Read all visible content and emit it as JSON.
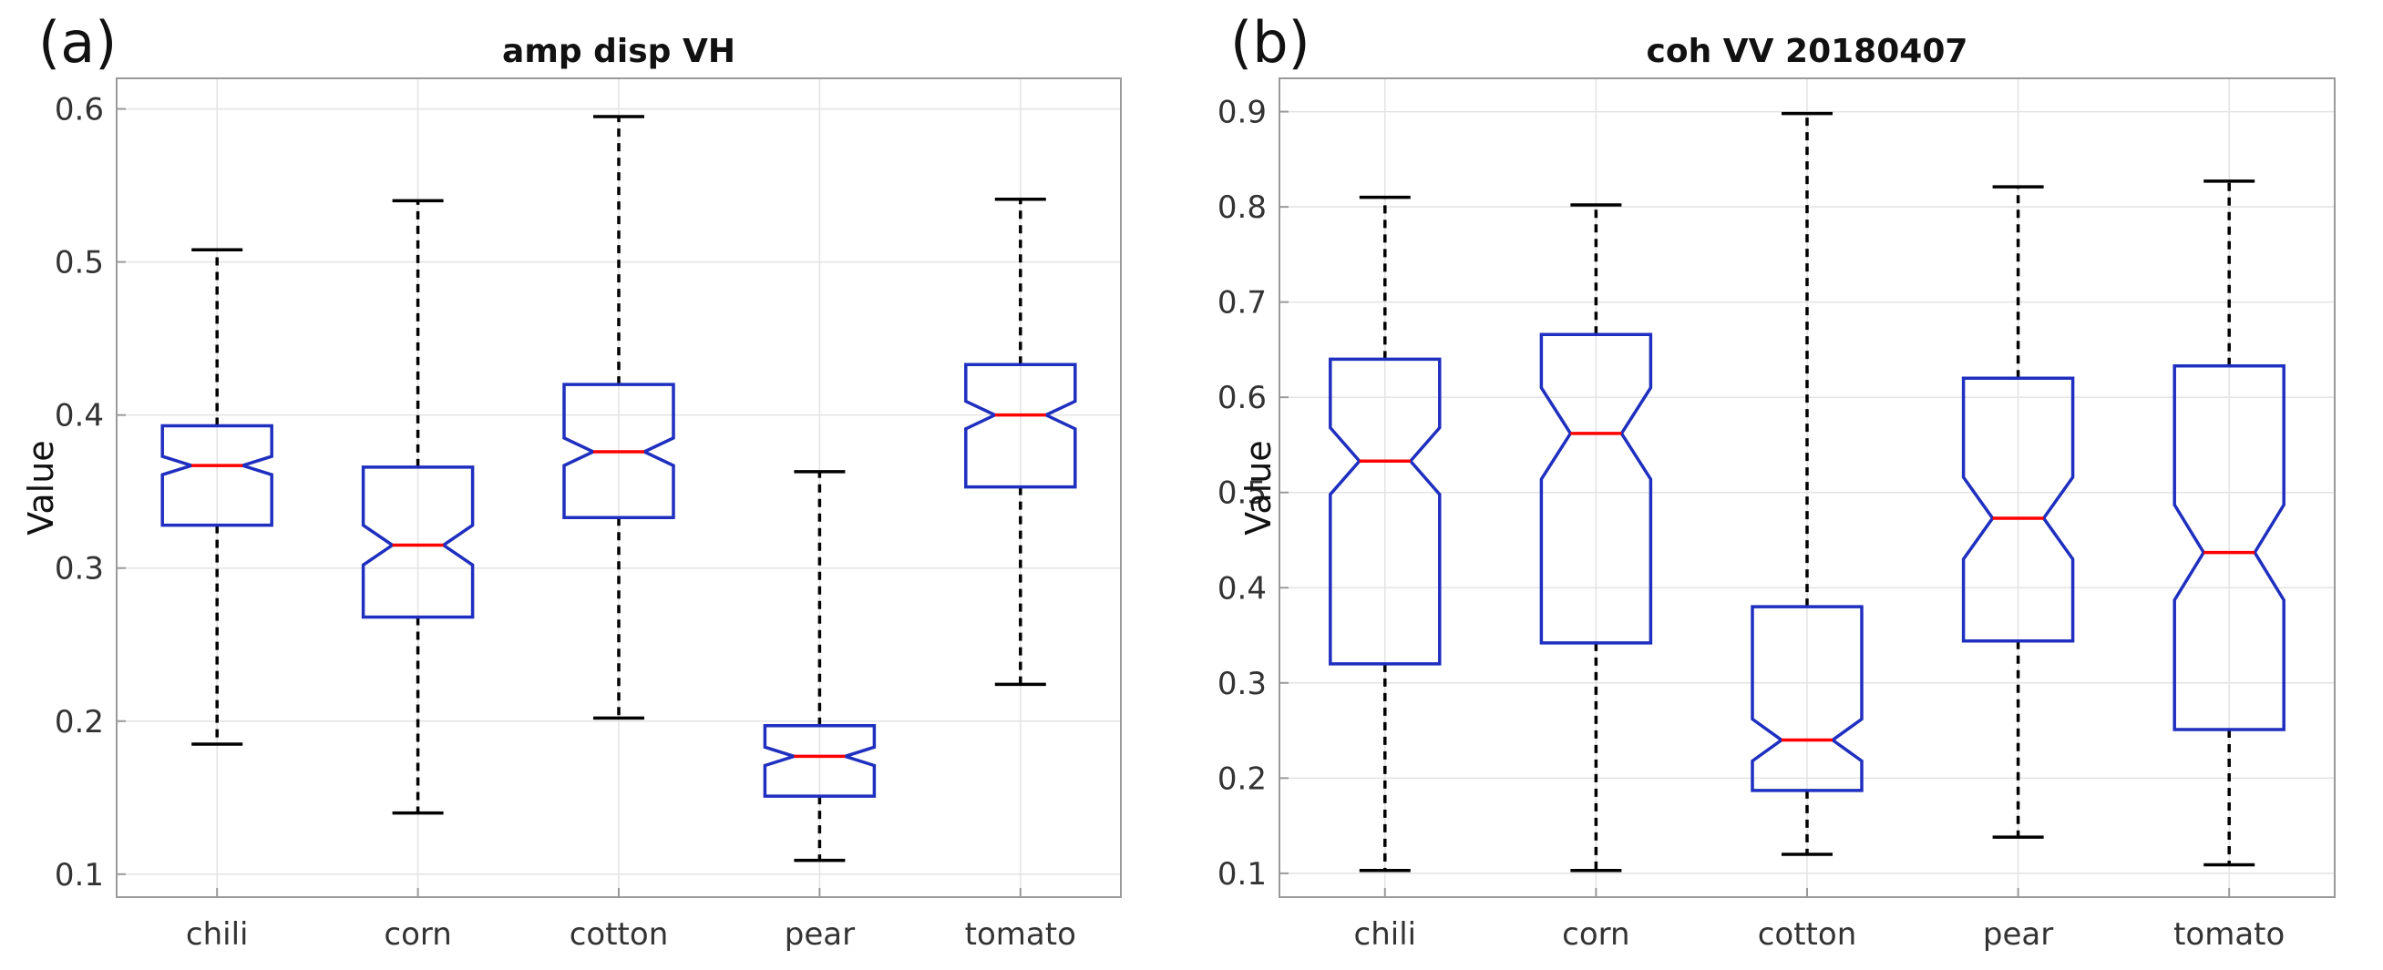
{
  "chart_data": [
    {
      "panel_label": "(a)",
      "type": "boxplot",
      "title": "amp disp VH",
      "xlabel": "",
      "ylabel": "Value",
      "ylim": [
        0.085,
        0.62
      ],
      "yticks": [
        0.1,
        0.2,
        0.3,
        0.4,
        0.5,
        0.6
      ],
      "ytick_labels": [
        "0.1",
        "0.2",
        "0.3",
        "0.4",
        "0.5",
        "0.6"
      ],
      "grid": true,
      "notched": true,
      "categories": [
        "chili",
        "corn",
        "cotton",
        "pear",
        "tomato"
      ],
      "boxes": [
        {
          "min": 0.185,
          "q1": 0.328,
          "median": 0.367,
          "q3": 0.393,
          "max": 0.508,
          "notch_low": 0.361,
          "notch_high": 0.373
        },
        {
          "min": 0.14,
          "q1": 0.268,
          "median": 0.315,
          "q3": 0.366,
          "max": 0.54,
          "notch_low": 0.302,
          "notch_high": 0.328
        },
        {
          "min": 0.202,
          "q1": 0.333,
          "median": 0.376,
          "q3": 0.42,
          "max": 0.595,
          "notch_low": 0.367,
          "notch_high": 0.385
        },
        {
          "min": 0.109,
          "q1": 0.151,
          "median": 0.177,
          "q3": 0.197,
          "max": 0.363,
          "notch_low": 0.171,
          "notch_high": 0.183
        },
        {
          "min": 0.224,
          "q1": 0.353,
          "median": 0.4,
          "q3": 0.433,
          "max": 0.541,
          "notch_low": 0.391,
          "notch_high": 0.409
        }
      ]
    },
    {
      "panel_label": "(b)",
      "type": "boxplot",
      "title": "coh VV 20180407",
      "xlabel": "",
      "ylabel": "Value",
      "ylim": [
        0.075,
        0.935
      ],
      "yticks": [
        0.1,
        0.2,
        0.3,
        0.4,
        0.5,
        0.6,
        0.7,
        0.8,
        0.9
      ],
      "ytick_labels": [
        "0.1",
        "0.2",
        "0.3",
        "0.4",
        "0.5",
        "0.6",
        "0.7",
        "0.8",
        "0.9"
      ],
      "grid": true,
      "notched": true,
      "categories": [
        "chili",
        "corn",
        "cotton",
        "pear",
        "tomato"
      ],
      "boxes": [
        {
          "min": 0.103,
          "q1": 0.32,
          "median": 0.533,
          "q3": 0.64,
          "max": 0.81,
          "notch_low": 0.498,
          "notch_high": 0.568
        },
        {
          "min": 0.103,
          "q1": 0.342,
          "median": 0.562,
          "q3": 0.666,
          "max": 0.802,
          "notch_low": 0.514,
          "notch_high": 0.61
        },
        {
          "min": 0.12,
          "q1": 0.187,
          "median": 0.24,
          "q3": 0.38,
          "max": 0.898,
          "notch_low": 0.218,
          "notch_high": 0.262
        },
        {
          "min": 0.138,
          "q1": 0.344,
          "median": 0.473,
          "q3": 0.62,
          "max": 0.821,
          "notch_low": 0.43,
          "notch_high": 0.516
        },
        {
          "min": 0.109,
          "q1": 0.251,
          "median": 0.437,
          "q3": 0.633,
          "max": 0.827,
          "notch_low": 0.387,
          "notch_high": 0.487
        }
      ]
    }
  ]
}
